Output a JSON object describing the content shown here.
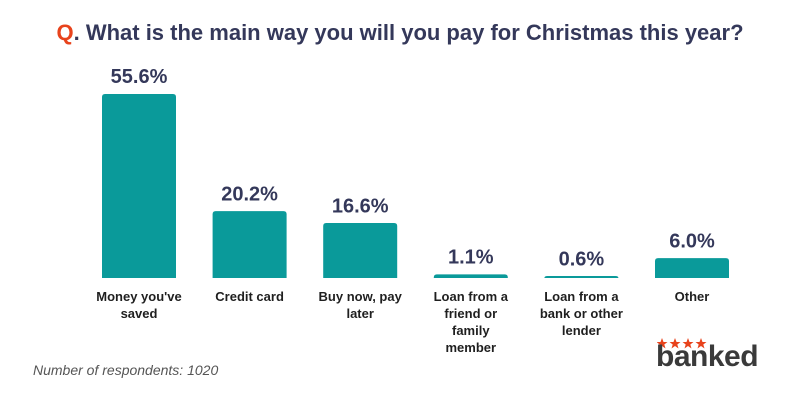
{
  "chart_data": {
    "type": "bar",
    "title": "Q. What is the main way you will you pay for Christmas this year?",
    "categories": [
      "Money you've saved",
      "Credit card",
      "Buy now, pay later",
      "Loan from a friend or family member",
      "Loan from a bank or other lender",
      "Other"
    ],
    "values": [
      55.6,
      20.2,
      16.6,
      1.1,
      0.6,
      6.0
    ],
    "value_labels": [
      "55.6%",
      "20.2%",
      "16.6%",
      "1.1%",
      "0.6%",
      "6.0%"
    ],
    "color": "#0a9a9a",
    "footnote": "Number of respondents: 1020",
    "logo": "banked"
  }
}
